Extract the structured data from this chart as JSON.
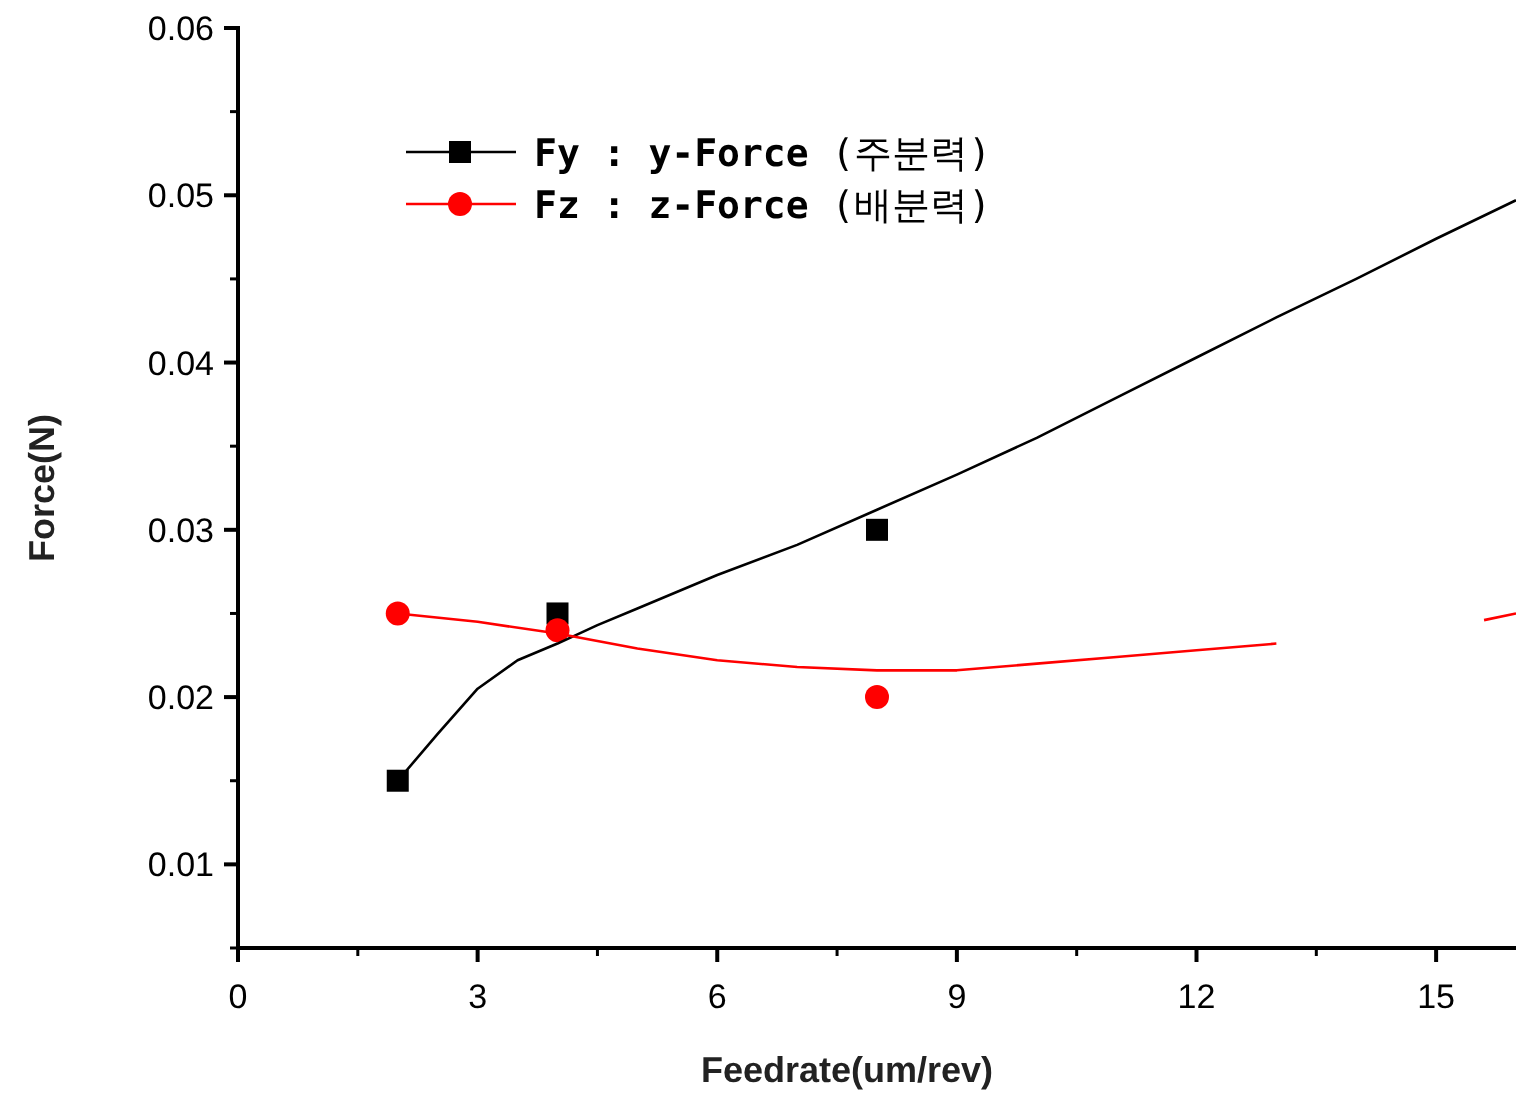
{
  "chart_data": {
    "type": "scatter",
    "xlabel": "Feedrate(um/rev)",
    "ylabel": "Force(N)",
    "xlim": [
      0,
      16
    ],
    "ylim": [
      0.005,
      0.06
    ],
    "xticks": [
      0,
      3,
      6,
      9,
      12,
      15
    ],
    "yticks": [
      0.01,
      0.02,
      0.03,
      0.04,
      0.05,
      0.06
    ],
    "grid": false,
    "legend": "top left",
    "series": [
      {
        "name": "**Fy : y-Force** (주분력)",
        "marker": "square",
        "color": "#000000",
        "x": [
          2,
          4,
          8
        ],
        "values": [
          0.015,
          0.025,
          0.03
        ]
      },
      {
        "name": "**Fz : z-Force** (배분력)",
        "marker": "circle",
        "color": "#ff0000",
        "x": [
          2,
          4,
          8
        ],
        "values": [
          0.025,
          0.024,
          0.02
        ]
      },
      {
        "type": "line",
        "marker": "none",
        "color": "#000000",
        "x": [
          2,
          2.5,
          3,
          3.5,
          4,
          4.5,
          5,
          6,
          7,
          8,
          9,
          10,
          11,
          12,
          13,
          14,
          15,
          16
        ],
        "values": [
          0.015,
          0.0178,
          0.0205,
          0.0222,
          0.0232,
          0.0243,
          0.0253,
          0.0273,
          0.0291,
          0.0312,
          0.0333,
          0.0355,
          0.0379,
          0.0403,
          0.0427,
          0.045,
          0.0474,
          0.0497
        ]
      },
      {
        "type": "line",
        "marker": "none",
        "color": "#ff0000",
        "x": [
          2,
          3,
          4,
          5,
          6,
          7,
          8,
          8.5,
          9,
          10,
          11,
          12,
          13,
          13.5,
          15.6,
          16
        ],
        "values": [
          0.025,
          0.0245,
          0.0238,
          0.0229,
          0.0222,
          0.0218,
          0.0216,
          0.0216,
          0.0216,
          0.022,
          0.0224,
          0.0228,
          0.0232,
          null,
          0.0246,
          0.025
        ]
      }
    ]
  }
}
